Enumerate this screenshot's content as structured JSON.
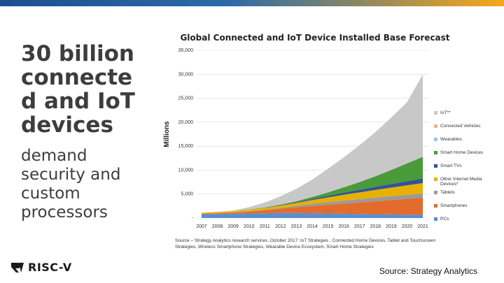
{
  "slide": {
    "headline": "30 billion connected and IoT devices",
    "subline": "demand security and custom processors",
    "source_credit": "Source: Strategy Analytics",
    "logo_text": "RISC-V"
  },
  "colors": {
    "iot": "#c8c8c8",
    "connected_vehicles": "#f4b183",
    "wearables": "#9dc3e6",
    "smart_home": "#4a9a3a",
    "smart_tvs": "#2f5597",
    "other_media": "#e8b000",
    "tablets": "#9a9a9a",
    "smartphones": "#e36b2c",
    "pcs": "#5b8fcf"
  },
  "chart_data": {
    "type": "area",
    "stacked": true,
    "title": "Global Connected and IoT Device Installed Base Forecast",
    "xlabel": "",
    "ylabel": "Millions",
    "ylim": [
      0,
      35000
    ],
    "yticks": [
      "35,000",
      "30,000",
      "25,000",
      "20,000",
      "15,000",
      "10,000",
      "5,000",
      "-"
    ],
    "grid": true,
    "legend_position": "right",
    "x": [
      "2007",
      "2008",
      "2009",
      "2010",
      "2011",
      "2012",
      "2013",
      "2014",
      "2015",
      "2016",
      "2017",
      "2018",
      "2019",
      "2020",
      "2021"
    ],
    "series": [
      {
        "name": "PCs",
        "values": [
          800,
          850,
          900,
          950,
          1000,
          1050,
          1050,
          1000,
          950,
          900,
          850,
          800,
          750,
          700,
          650
        ]
      },
      {
        "name": "Smartphones",
        "values": [
          100,
          150,
          250,
          400,
          650,
          900,
          1200,
          1500,
          1800,
          2100,
          2400,
          2700,
          3000,
          3300,
          3600
        ]
      },
      {
        "name": "Tablets",
        "values": [
          0,
          0,
          0,
          20,
          60,
          150,
          300,
          450,
          550,
          650,
          700,
          750,
          800,
          820,
          850
        ]
      },
      {
        "name": "Other Internet Media Devices*",
        "values": [
          200,
          250,
          300,
          350,
          400,
          500,
          600,
          800,
          1000,
          1200,
          1400,
          1600,
          1800,
          2000,
          2200
        ]
      },
      {
        "name": "Smart TVs",
        "values": [
          0,
          0,
          0,
          20,
          50,
          100,
          150,
          250,
          350,
          450,
          550,
          650,
          750,
          850,
          950
        ]
      },
      {
        "name": "Smart Home Devices",
        "values": [
          0,
          0,
          0,
          20,
          50,
          100,
          200,
          400,
          700,
          1100,
          1600,
          2200,
          2900,
          3700,
          4500
        ]
      },
      {
        "name": "Wearables",
        "values": [
          0,
          0,
          0,
          0,
          10,
          20,
          40,
          60,
          80,
          100,
          120,
          140,
          160,
          180,
          200
        ]
      },
      {
        "name": "Connected Vehicles",
        "values": [
          0,
          0,
          0,
          10,
          20,
          30,
          40,
          50,
          60,
          70,
          80,
          90,
          100,
          110,
          120
        ]
      },
      {
        "name": "IoT**",
        "values": [
          0,
          50,
          100,
          500,
          1000,
          1700,
          2500,
          3500,
          4800,
          6100,
          7500,
          9000,
          10700,
          12500,
          16900
        ]
      }
    ],
    "legend": [
      "IoT**",
      "Connected Vehicles",
      "Wearables",
      "Smart Home Devices",
      "Smart TVs",
      "Other Internet Media Devices*",
      "Tablets",
      "Smartphones",
      "PCs"
    ],
    "source_note": "Source – Strategy Analytics research services ,October 2017: IoT Strategies , Connected Home Devices, Tablet and Touchscreen Strategies, Wireless Smartphone Strategies, Wearable Device Ecosystem, Smart Home Strategies"
  }
}
